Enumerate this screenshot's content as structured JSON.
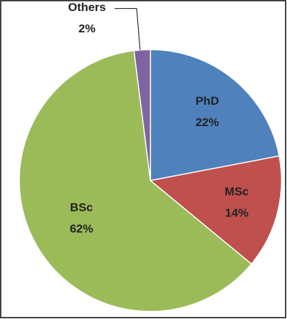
{
  "chart_data": {
    "type": "pie",
    "categories": [
      "PhD",
      "MSc",
      "BSc",
      "Others"
    ],
    "values": [
      22,
      14,
      62,
      2
    ],
    "value_labels": [
      "22%",
      "14%",
      "62%",
      "2%"
    ],
    "colors": [
      "#4f81bd",
      "#c0504d",
      "#9bbb59",
      "#8064a2"
    ]
  }
}
